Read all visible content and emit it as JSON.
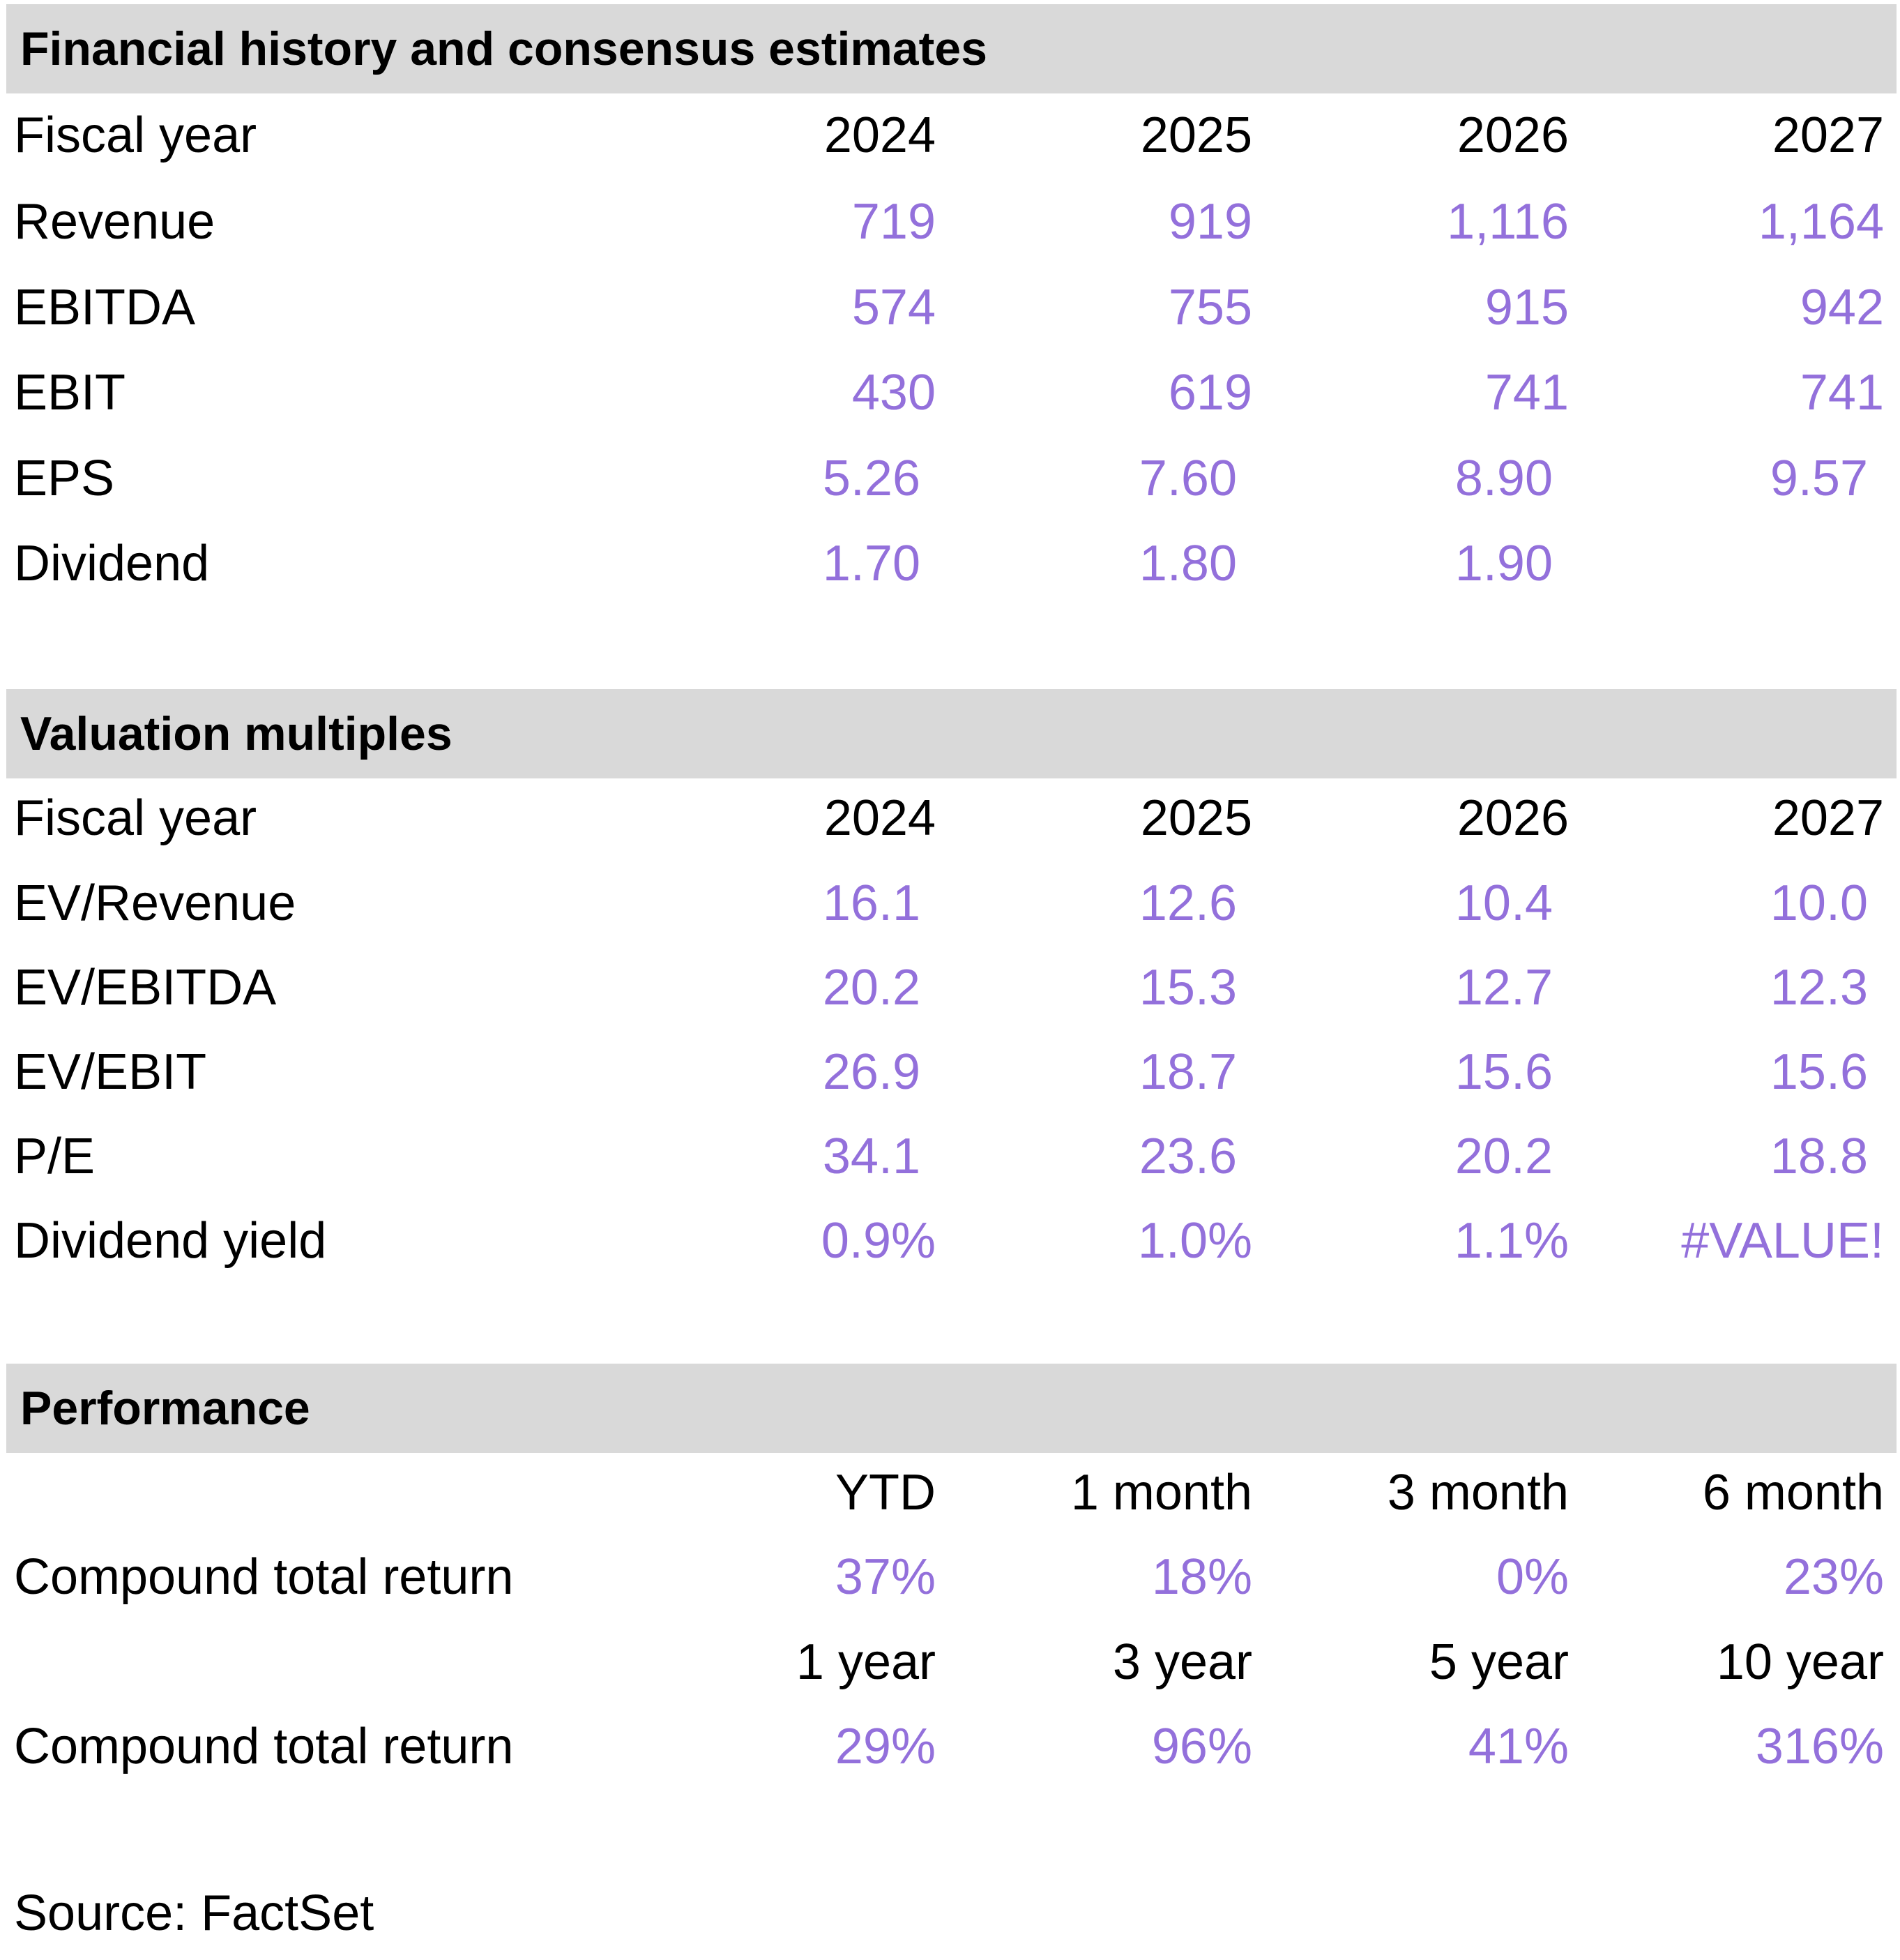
{
  "financials": {
    "title": "Financial history and consensus estimates",
    "header": {
      "label": "Fiscal year",
      "cols": [
        "2024",
        "2025",
        "2026",
        "2027"
      ]
    },
    "rows": [
      {
        "label": "Revenue",
        "values": [
          "719",
          "919",
          "1,116",
          "1,164"
        ]
      },
      {
        "label": "EBITDA",
        "values": [
          "574",
          "755",
          "915",
          "942"
        ]
      },
      {
        "label": "EBIT",
        "values": [
          "430",
          "619",
          "741",
          "741"
        ]
      },
      {
        "label": "EPS",
        "values": [
          "5.26",
          "7.60",
          "8.90",
          "9.57"
        ]
      },
      {
        "label": "Dividend",
        "values": [
          "1.70",
          "1.80",
          "1.90",
          ""
        ]
      }
    ]
  },
  "valuation": {
    "title": "Valuation multiples",
    "header": {
      "label": "Fiscal year",
      "cols": [
        "2024",
        "2025",
        "2026",
        "2027"
      ]
    },
    "rows": [
      {
        "label": "EV/Revenue",
        "values": [
          "16.1",
          "12.6",
          "10.4",
          "10.0"
        ]
      },
      {
        "label": "EV/EBITDA",
        "values": [
          "20.2",
          "15.3",
          "12.7",
          "12.3"
        ]
      },
      {
        "label": "EV/EBIT",
        "values": [
          "26.9",
          "18.7",
          "15.6",
          "15.6"
        ]
      },
      {
        "label": "P/E",
        "values": [
          "34.1",
          "23.6",
          "20.2",
          "18.8"
        ]
      },
      {
        "label": "Dividend yield",
        "values": [
          "0.9%",
          "1.0%",
          "1.1%",
          "#VALUE!"
        ]
      }
    ]
  },
  "performance": {
    "title": "Performance",
    "header1": {
      "cols": [
        "YTD",
        "1 month",
        "3 month",
        "6 month"
      ]
    },
    "row1": {
      "label": "Compound total return",
      "values": [
        "37%",
        "18%",
        "0%",
        "23%"
      ]
    },
    "header2": {
      "cols": [
        "1 year",
        "3 year",
        "5 year",
        "10 year"
      ]
    },
    "row2": {
      "label": "Compound total return",
      "values": [
        "29%",
        "96%",
        "41%",
        "316%"
      ]
    }
  },
  "source": "Source: FactSet",
  "colors": {
    "value": "#9370db",
    "band": "#d9d9d9"
  }
}
